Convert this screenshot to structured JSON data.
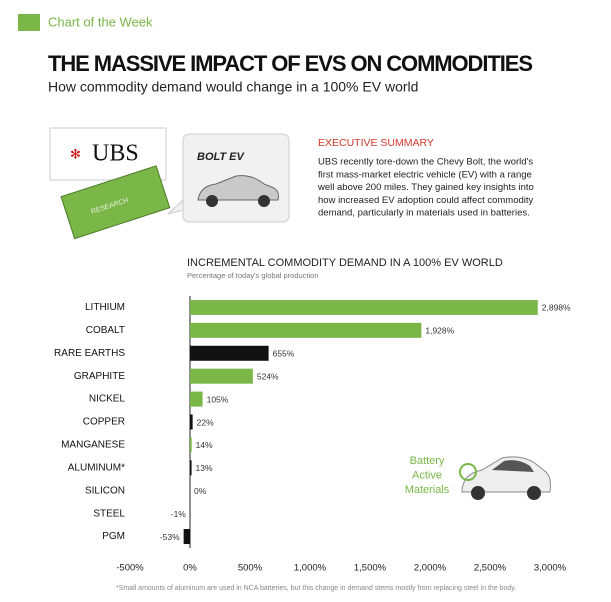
{
  "header": {
    "kicker": "Chart of the Week",
    "title": "THE MASSIVE IMPACT OF EVS ON COMMODITIES",
    "subtitle": "How commodity demand would change in a 100% EV world"
  },
  "illustration": {
    "bank": "UBS",
    "book": "RESEARCH",
    "car": "BOLT EV"
  },
  "summary": {
    "heading": "EXECUTIVE SUMMARY",
    "lines": [
      "UBS recently tore-down the Chevy Bolt, the world's",
      "first mass-market electric vehicle (EV) with a range",
      "well above 200 miles. They gained key insights into",
      "how increased EV adoption could affect commodity",
      "demand, particularly in materials used in batteries."
    ]
  },
  "chart_data": {
    "type": "bar",
    "orientation": "horizontal",
    "title": "INCREMENTAL COMMODITY DEMAND IN A 100% EV WORLD",
    "subtitle": "Percentage of today's global production",
    "categories": [
      "LITHIUM",
      "COBALT",
      "RARE EARTHS",
      "GRAPHITE",
      "NICKEL",
      "COPPER",
      "MANGANESE",
      "ALUMINUM*",
      "SILICON",
      "STEEL",
      "PGM"
    ],
    "values": [
      2898,
      1928,
      655,
      524,
      105,
      22,
      14,
      13,
      0,
      -1,
      -53
    ],
    "value_labels": [
      "2,898%",
      "1,928%",
      "655%",
      "524%",
      "105%",
      "22%",
      "14%",
      "13%",
      "0%",
      "-1%",
      "-53%"
    ],
    "colors": [
      "#7ab648",
      "#7ab648",
      "#111111",
      "#7ab648",
      "#7ab648",
      "#111111",
      "#7ab648",
      "#111111",
      "#111111",
      "#111111",
      "#111111"
    ],
    "xlim": [
      -500,
      3000
    ],
    "xticks": [
      {
        "value": -500,
        "label": "-500%"
      },
      {
        "value": 0,
        "label": "0%"
      },
      {
        "value": 500,
        "label": "500%"
      },
      {
        "value": 1000,
        "label": "1,000%"
      },
      {
        "value": 1500,
        "label": "1,500%"
      },
      {
        "value": 2000,
        "label": "2,000%"
      },
      {
        "value": 2500,
        "label": "2,500%"
      },
      {
        "value": 3000,
        "label": "3,000%"
      }
    ],
    "annotation": [
      "Battery",
      "Active",
      "Materials"
    ],
    "footnote": "*Small amounts of aluminum are used in NCA batteries, but this change in demand stems mostly from replacing steel in the body."
  }
}
